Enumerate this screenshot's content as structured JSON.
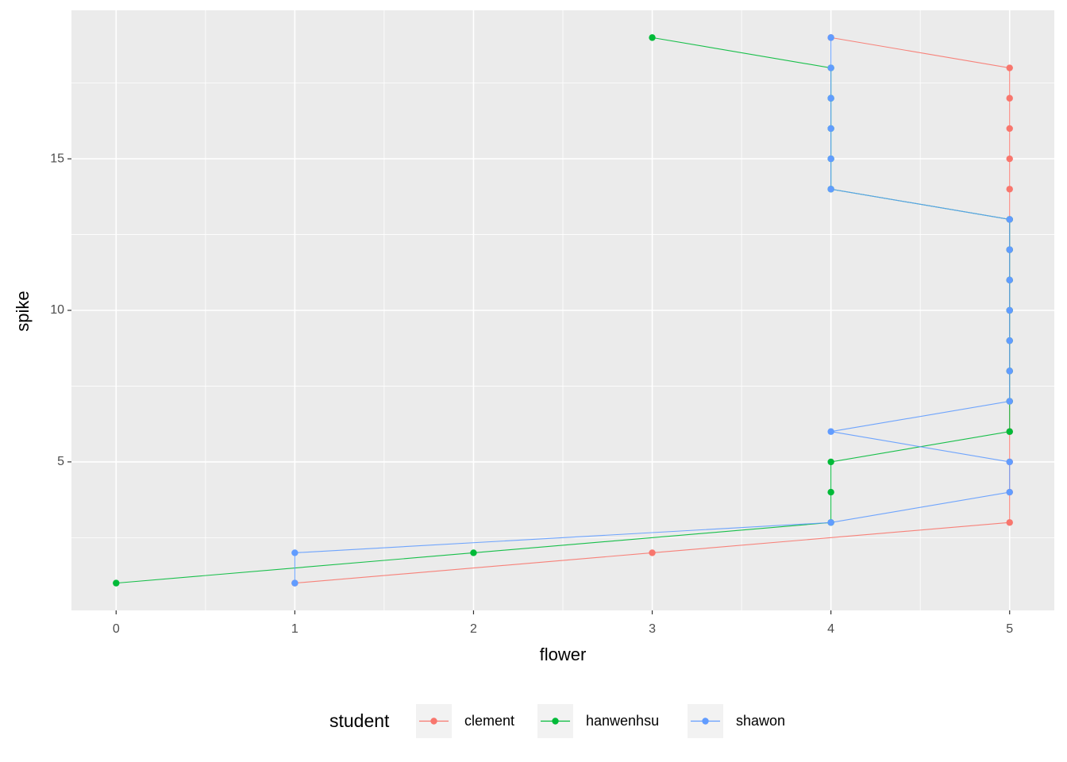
{
  "chart_data": {
    "type": "line",
    "x_label": "flower",
    "y_label": "spike",
    "legend_title": "student",
    "legend_position": "bottom",
    "grid": true,
    "points": true,
    "xlim": [
      -0.25,
      5.25
    ],
    "xticks": [
      0,
      1,
      2,
      3,
      4,
      5
    ],
    "ylim": [
      0.1,
      19.9
    ],
    "yticks": [
      5,
      10,
      15
    ],
    "series": [
      {
        "name": "clement",
        "color": "#F8766D",
        "x": [
          1,
          3,
          5,
          5,
          5,
          5,
          5,
          5,
          5,
          5,
          5,
          5,
          5,
          5,
          5,
          5,
          5,
          5,
          4
        ],
        "values": [
          1,
          2,
          3,
          4,
          5,
          6,
          7,
          8,
          9,
          10,
          11,
          12,
          13,
          14,
          15,
          16,
          17,
          18,
          19
        ]
      },
      {
        "name": "hanwenhsu",
        "color": "#00BA38",
        "x": [
          0,
          2,
          4,
          4,
          4,
          5,
          5,
          5,
          5,
          5,
          5,
          5,
          5,
          4,
          4,
          4,
          4,
          4,
          3
        ],
        "values": [
          1,
          2,
          3,
          4,
          5,
          6,
          7,
          8,
          9,
          10,
          11,
          12,
          13,
          14,
          15,
          16,
          17,
          18,
          19
        ]
      },
      {
        "name": "shawon",
        "color": "#619CFF",
        "x": [
          1,
          1,
          4,
          5,
          5,
          4,
          5,
          5,
          5,
          5,
          5,
          5,
          5,
          4,
          4,
          4,
          4,
          4,
          4
        ],
        "values": [
          1,
          2,
          3,
          4,
          5,
          6,
          7,
          8,
          9,
          10,
          11,
          12,
          13,
          14,
          15,
          16,
          17,
          18,
          19
        ]
      }
    ]
  }
}
